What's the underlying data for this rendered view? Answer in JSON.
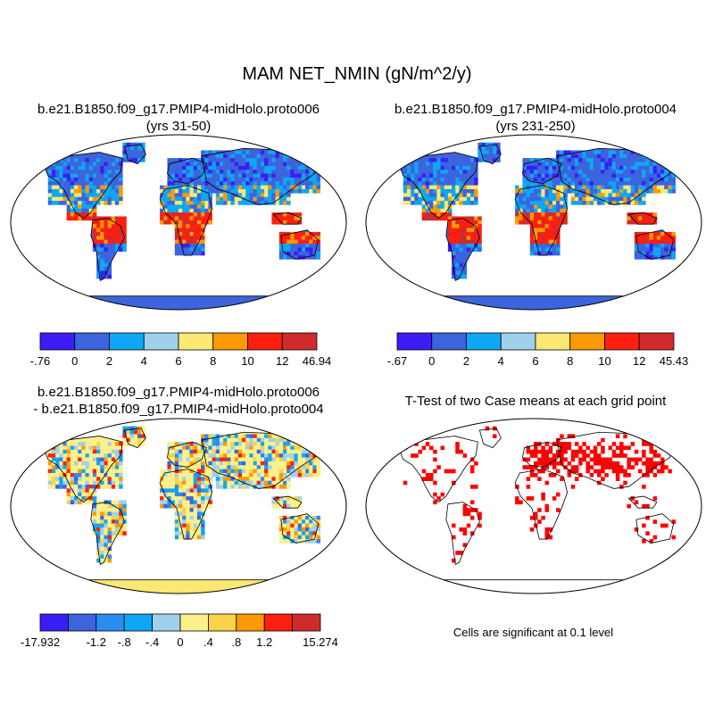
{
  "figure": {
    "title": "MAM NET_NMIN (gN/m^2/y)"
  },
  "panels": {
    "top_left": {
      "title_line1": "b.e21.B1850.f09_g17.PMIP4-midHolo.proto006",
      "title_line2": "(yrs 31-50)"
    },
    "top_right": {
      "title_line1": "b.e21.B1850.f09_g17.PMIP4-midHolo.proto004",
      "title_line2": "(yrs 231-250)"
    },
    "bottom_left": {
      "title_line1": "b.e21.B1850.f09_g17.PMIP4-midHolo.proto006",
      "title_line2": "- b.e21.B1850.f09_g17.PMIP4-midHolo.proto004"
    },
    "bottom_right": {
      "title_line1": "T-Test of two Case means at each grid point",
      "note": "Cells are significant at 0.1 level"
    }
  },
  "colorbars": {
    "top_left": {
      "colors": [
        "#3a1ef5",
        "#3c64dc",
        "#0ea7f5",
        "#9fd1ec",
        "#fbe873",
        "#fb9a06",
        "#ff1f0f",
        "#d02b2b"
      ],
      "labels": [
        "-.76",
        "0",
        "2",
        "4",
        "6",
        "8",
        "10",
        "12",
        "46.94"
      ]
    },
    "top_right": {
      "colors": [
        "#3a1ef5",
        "#3c64dc",
        "#0ea7f5",
        "#9fd1ec",
        "#fbe873",
        "#fb9a06",
        "#ff1f0f",
        "#d02b2b"
      ],
      "labels": [
        "-.67",
        "0",
        "2",
        "4",
        "6",
        "8",
        "10",
        "12",
        "45.43"
      ]
    },
    "bottom_left": {
      "colors": [
        "#3a1ef5",
        "#3c64dc",
        "#2a8cf0",
        "#0ea7f5",
        "#9fd1ec",
        "#fbf08c",
        "#fbd24a",
        "#fb9a06",
        "#ff1f0f",
        "#d02b2b"
      ],
      "labels": [
        "-17.932",
        "",
        "-1.2",
        "-.8",
        "-.4",
        "0",
        ".4",
        ".8",
        "1.2",
        "",
        "15.274"
      ]
    }
  },
  "map_colors": {
    "ocean": "#ffffff",
    "outline": "#000000",
    "antarctica_abs": "#3c64dc",
    "antarctica_diff": "#fbe873",
    "significant": "#ff0000"
  }
}
